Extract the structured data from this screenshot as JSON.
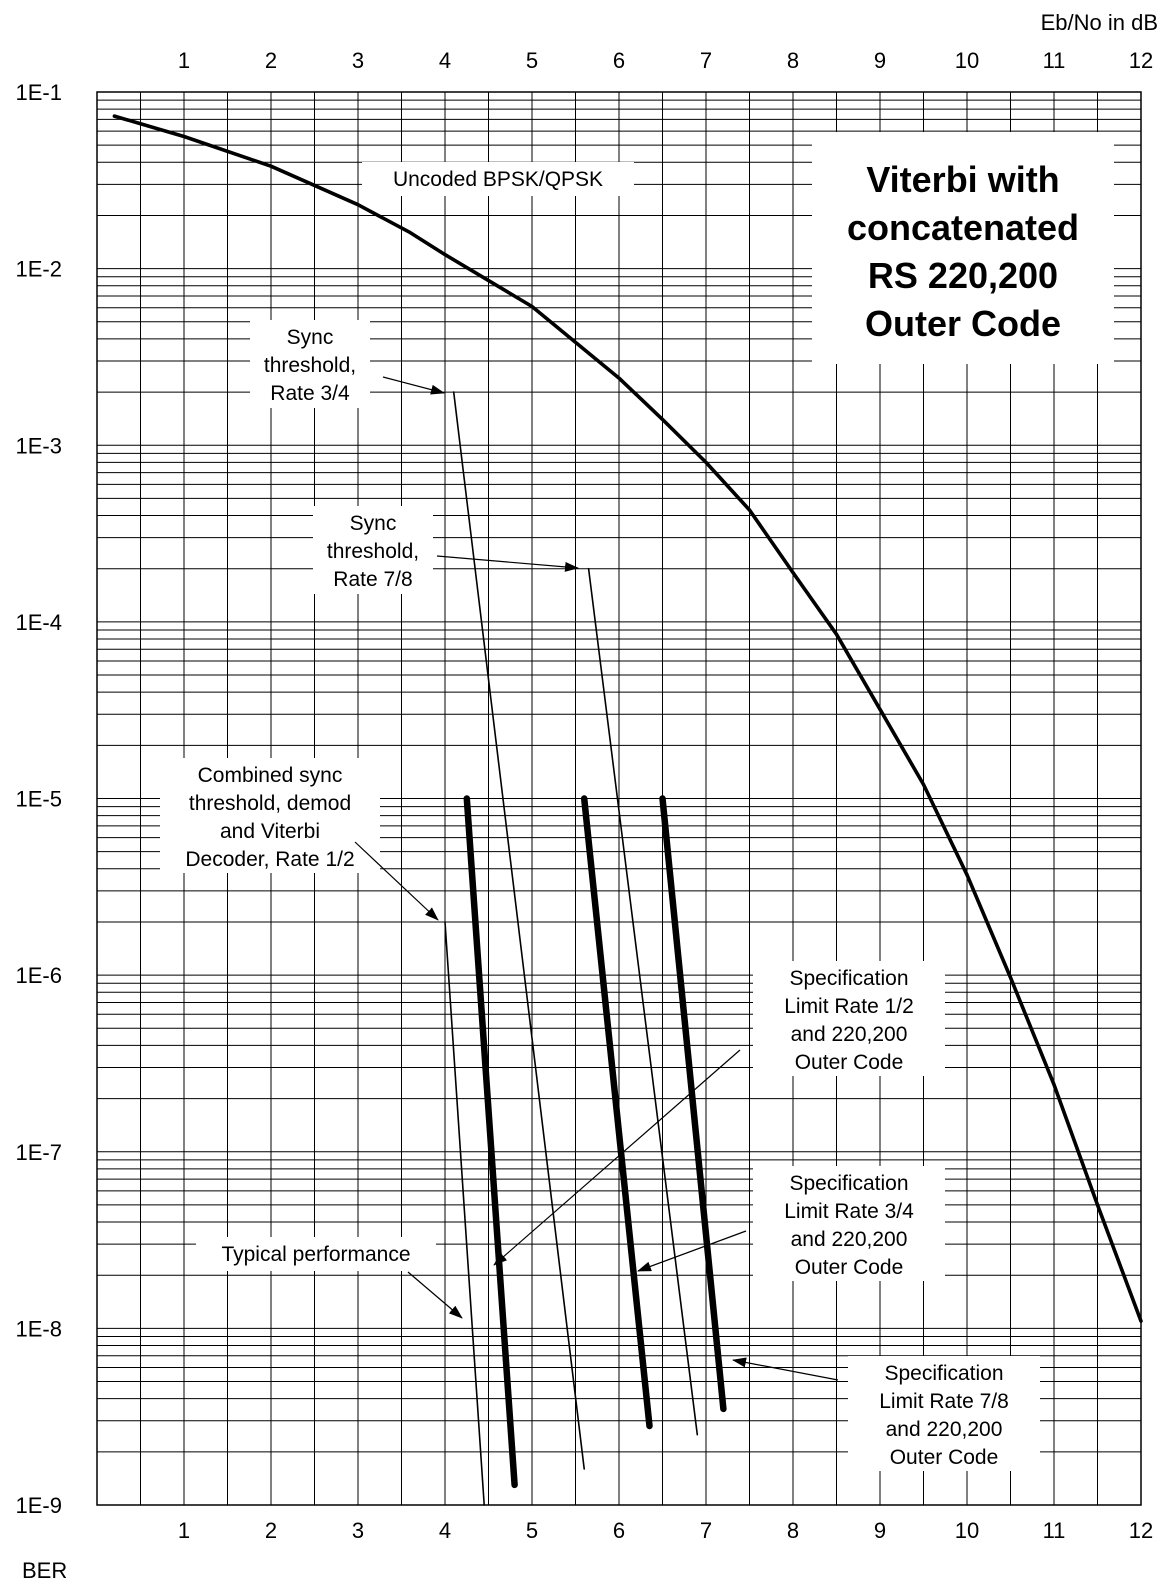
{
  "chart_data": {
    "type": "line",
    "title_lines": [
      "Viterbi with",
      "concatenated",
      "RS 220,200",
      "Outer Code"
    ],
    "xlabel": "Eb/No in dB",
    "ylabel": "BER",
    "x_scale": "linear",
    "y_scale": "log",
    "xlim": [
      0,
      12
    ],
    "ylim": [
      1e-09,
      0.1
    ],
    "x_ticks": [
      1,
      2,
      3,
      4,
      5,
      6,
      7,
      8,
      9,
      10,
      11,
      12
    ],
    "y_ticks": [
      {
        "value": 0.1,
        "label": "1E-1"
      },
      {
        "value": 0.01,
        "label": "1E-2"
      },
      {
        "value": 0.001,
        "label": "1E-3"
      },
      {
        "value": 0.0001,
        "label": "1E-4"
      },
      {
        "value": 1e-05,
        "label": "1E-5"
      },
      {
        "value": 1e-06,
        "label": "1E-6"
      },
      {
        "value": 1e-07,
        "label": "1E-7"
      },
      {
        "value": 1e-08,
        "label": "1E-8"
      },
      {
        "value": 1e-09,
        "label": "1E-9"
      }
    ],
    "grid": true,
    "series": [
      {
        "style": "medium",
        "x": [
          0.2,
          1.0,
          2.0,
          3.0,
          3.6,
          4.0,
          5.0,
          6.0,
          6.5,
          7.0,
          7.5,
          8.0,
          8.5,
          9.0,
          9.5,
          10.0,
          10.5,
          11.0,
          11.5,
          12.0
        ],
        "y": [
          0.073,
          0.056,
          0.038,
          0.023,
          0.016,
          0.012,
          0.0061,
          0.0024,
          0.0014,
          0.0008,
          0.00043,
          0.00019,
          8.5e-05,
          3.2e-05,
          1.2e-05,
          3.7e-06,
          9.7e-07,
          2.4e-07,
          5e-08,
          1.1e-08
        ]
      },
      {
        "style": "thin",
        "x": [
          4.1,
          5.6
        ],
        "y": [
          0.002,
          1.6e-09
        ]
      },
      {
        "style": "thin",
        "x": [
          5.65,
          6.9
        ],
        "y": [
          0.0002,
          2.5e-09
        ]
      },
      {
        "style": "thin",
        "x": [
          4.0,
          4.45
        ],
        "y": [
          2e-06,
          1e-09
        ]
      },
      {
        "style": "thick",
        "x": [
          4.25,
          4.8
        ],
        "y": [
          1e-05,
          1.3e-09
        ]
      },
      {
        "style": "thick",
        "x": [
          5.6,
          6.35
        ],
        "y": [
          1e-05,
          2.8e-09
        ]
      },
      {
        "style": "thick",
        "x": [
          6.5,
          7.2
        ],
        "y": [
          1e-05,
          3.5e-09
        ]
      }
    ],
    "annotations": [
      {
        "lines": [
          "Uncoded BPSK/QPSK"
        ]
      },
      {
        "lines": [
          "Sync",
          "threshold,",
          "Rate 3/4"
        ]
      },
      {
        "lines": [
          "Sync",
          "threshold,",
          "Rate 7/8"
        ]
      },
      {
        "lines": [
          "Combined sync",
          "threshold, demod",
          "and Viterbi",
          "Decoder, Rate 1/2"
        ]
      },
      {
        "lines": [
          "Specification",
          "Limit Rate 1/2",
          "and 220,200",
          "Outer Code"
        ]
      },
      {
        "lines": [
          "Typical performance"
        ]
      },
      {
        "lines": [
          "Specification",
          "Limit  Rate 3/4",
          "and 220,200",
          "Outer Code"
        ]
      },
      {
        "lines": [
          "Specification",
          "Limit Rate 7/8",
          "and 220,200",
          "Outer Code"
        ]
      }
    ]
  }
}
